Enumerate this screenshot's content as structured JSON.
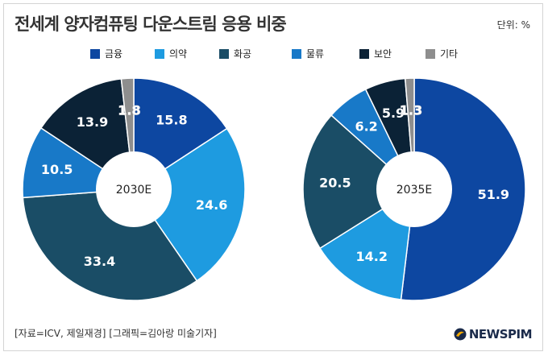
{
  "title": "전세계 양자컴퓨팅 다운스트림 응용 비중",
  "unit": "단위: %",
  "source": "[자료=ICV, 제일재경] [그래픽=김아랑 미술기자]",
  "brand": "NEWSPIM",
  "colors": {
    "finance": "#0d47a1",
    "medicine": "#1e9be0",
    "chemistry": "#1a4d66",
    "logistics": "#1879c8",
    "security": "#0b2236",
    "other": "#8e8e8e"
  },
  "chart_data": [
    {
      "type": "pie",
      "center_label": "2030E",
      "categories": [
        "금융",
        "의약",
        "화공",
        "물류",
        "보안",
        "기타"
      ],
      "values": [
        15.8,
        24.6,
        33.4,
        10.5,
        13.9,
        1.8
      ],
      "labels": [
        "15.8",
        "24.6",
        "33.4",
        "10.5",
        "13.9",
        "1.8"
      ]
    },
    {
      "type": "pie",
      "center_label": "2035E",
      "categories": [
        "금융",
        "의약",
        "화공",
        "물류",
        "보안",
        "기타"
      ],
      "values": [
        51.9,
        14.2,
        20.5,
        6.2,
        5.9,
        1.3
      ],
      "labels": [
        "51.9",
        "14.2",
        "20.5",
        "6.2",
        "5.9",
        "1.3"
      ]
    }
  ],
  "legend": [
    {
      "label": "금융",
      "color": "#0d47a1"
    },
    {
      "label": "의약",
      "color": "#1e9be0"
    },
    {
      "label": "화공",
      "color": "#1a4d66"
    },
    {
      "label": "물류",
      "color": "#1879c8"
    },
    {
      "label": "보안",
      "color": "#0b2236"
    },
    {
      "label": "기타",
      "color": "#8e8e8e"
    }
  ]
}
